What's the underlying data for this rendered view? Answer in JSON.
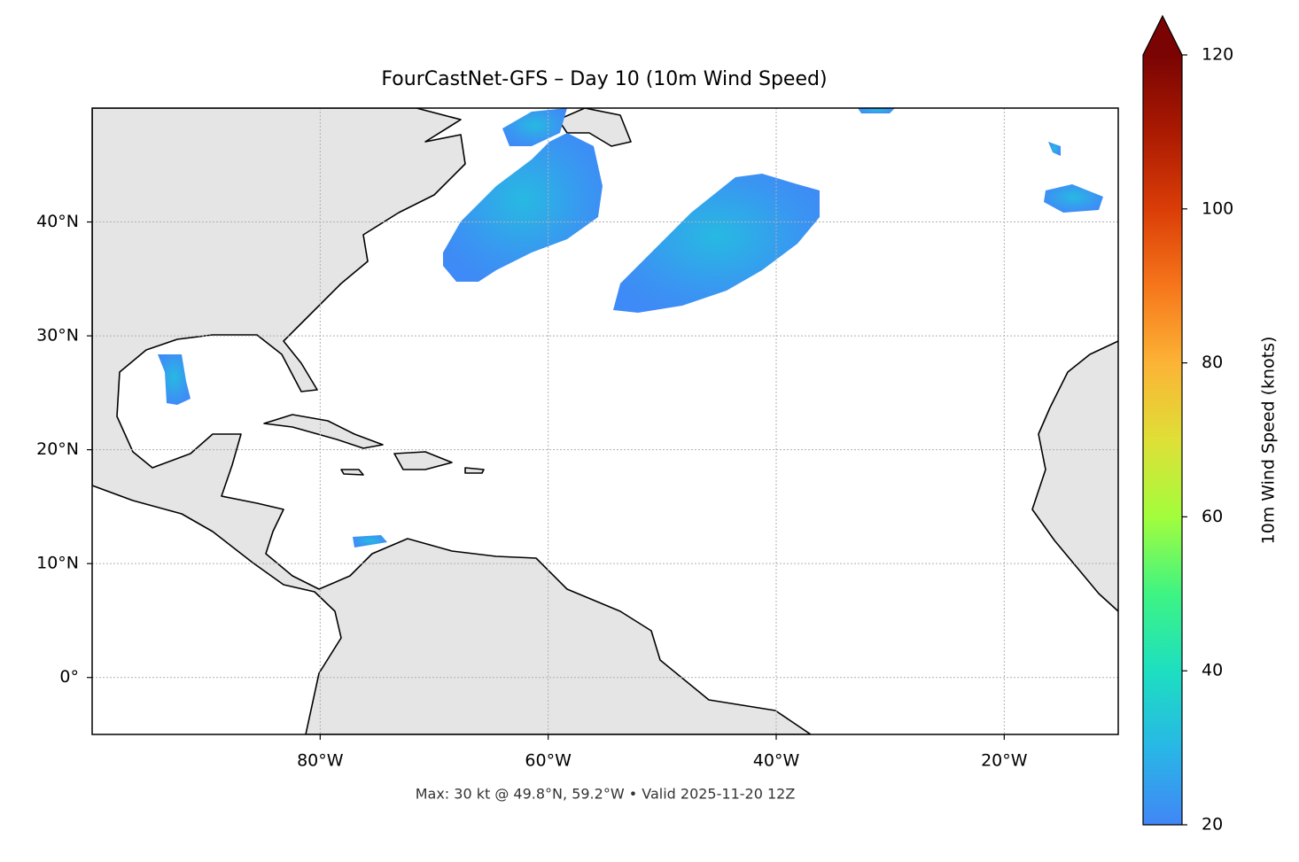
{
  "chart_data": {
    "type": "map",
    "title": "FourCastNet-GFS – Day 10 (10m Wind Speed)",
    "footnote": "Max: 30 kt @ 49.8°N, 59.2°W • Valid 2025-11-20 12Z",
    "xlim": [
      -100,
      -10
    ],
    "ylim": [
      -5,
      50
    ],
    "xticks": [
      {
        "value": -80,
        "label": "80°W"
      },
      {
        "value": -60,
        "label": "60°W"
      },
      {
        "value": -40,
        "label": "40°W"
      },
      {
        "value": -20,
        "label": "20°W"
      }
    ],
    "yticks": [
      {
        "value": 0,
        "label": "0°"
      },
      {
        "value": 10,
        "label": "10°N"
      },
      {
        "value": 20,
        "label": "20°N"
      },
      {
        "value": 30,
        "label": "30°N"
      },
      {
        "value": 40,
        "label": "40°N"
      }
    ],
    "grid": true,
    "colorbar": {
      "label": "10m Wind Speed (knots)",
      "lim": [
        20,
        120
      ],
      "ticks": [
        20,
        40,
        60,
        80,
        100,
        120
      ]
    }
  }
}
